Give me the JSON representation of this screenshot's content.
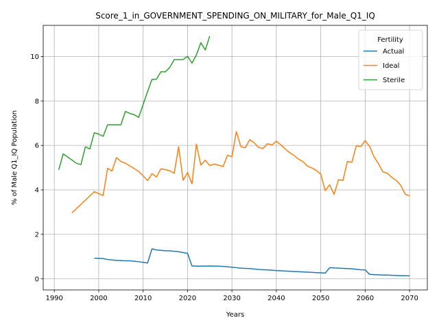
{
  "chart_data": {
    "type": "line",
    "title": "Score_1_in_GOVERNMENT_SPENDING_ON_MILITARY_for_Male_Q1_IQ",
    "xlabel": "Years",
    "ylabel": "% of Male Q1_IQ Population",
    "xlim": [
      1987.5,
      2074
    ],
    "ylim": [
      -0.5,
      11.4
    ],
    "xticks": [
      1990,
      2000,
      2010,
      2020,
      2030,
      2040,
      2050,
      2060,
      2070
    ],
    "yticks": [
      0,
      2,
      4,
      6,
      8,
      10
    ],
    "grid": true,
    "legend": {
      "title": "Fertility",
      "position": "top-right"
    },
    "series": [
      {
        "name": "Actual",
        "color": "#1f77b4",
        "x": [
          1999,
          2000,
          2001,
          2002,
          2003,
          2004,
          2005,
          2006,
          2007,
          2008,
          2009,
          2010,
          2011,
          2012,
          2013,
          2014,
          2015,
          2016,
          2017,
          2018,
          2019,
          2020,
          2021,
          2022,
          2023,
          2024,
          2025,
          2026,
          2027,
          2028,
          2029,
          2030,
          2031,
          2032,
          2033,
          2034,
          2035,
          2036,
          2037,
          2038,
          2039,
          2040,
          2041,
          2042,
          2043,
          2044,
          2045,
          2046,
          2047,
          2048,
          2049,
          2050,
          2051,
          2052,
          2053,
          2054,
          2055,
          2056,
          2057,
          2058,
          2059,
          2060,
          2061,
          2062,
          2063,
          2064,
          2065,
          2066,
          2067,
          2068,
          2069,
          2070
        ],
        "values": [
          0.93,
          0.92,
          0.91,
          0.87,
          0.85,
          0.83,
          0.82,
          0.81,
          0.81,
          0.79,
          0.77,
          0.74,
          0.71,
          1.35,
          1.3,
          1.28,
          1.26,
          1.26,
          1.24,
          1.22,
          1.18,
          1.15,
          0.58,
          0.57,
          0.57,
          0.57,
          0.58,
          0.57,
          0.57,
          0.56,
          0.54,
          0.52,
          0.5,
          0.48,
          0.47,
          0.46,
          0.44,
          0.42,
          0.41,
          0.4,
          0.39,
          0.37,
          0.36,
          0.35,
          0.34,
          0.33,
          0.32,
          0.31,
          0.3,
          0.29,
          0.28,
          0.27,
          0.26,
          0.5,
          0.49,
          0.48,
          0.47,
          0.46,
          0.45,
          0.43,
          0.41,
          0.4,
          0.2,
          0.19,
          0.18,
          0.17,
          0.17,
          0.16,
          0.15,
          0.14,
          0.14,
          0.13
        ]
      },
      {
        "name": "Ideal",
        "color": "#ff7f0e",
        "x": [
          1994,
          1999,
          2001,
          2002,
          2003,
          2004,
          2005,
          2006,
          2007,
          2008,
          2009,
          2010,
          2011,
          2012,
          2013,
          2014,
          2015,
          2016,
          2017,
          2018,
          2019,
          2020,
          2021,
          2022,
          2023,
          2024,
          2025,
          2026,
          2027,
          2028,
          2029,
          2030,
          2031,
          2032,
          2033,
          2034,
          2035,
          2036,
          2037,
          2038,
          2039,
          2040,
          2041,
          2042,
          2043,
          2044,
          2045,
          2046,
          2047,
          2048,
          2049,
          2050,
          2051,
          2052,
          2053,
          2054,
          2055,
          2056,
          2057,
          2058,
          2059,
          2060,
          2061,
          2062,
          2063,
          2064,
          2065,
          2066,
          2067,
          2068,
          2069,
          2070
        ],
        "values": [
          2.97,
          3.92,
          3.75,
          4.97,
          4.85,
          5.45,
          5.28,
          5.2,
          5.08,
          4.96,
          4.83,
          4.63,
          4.42,
          4.73,
          4.58,
          4.95,
          4.91,
          4.86,
          4.75,
          5.94,
          4.43,
          4.78,
          4.27,
          6.06,
          5.11,
          5.34,
          5.09,
          5.16,
          5.11,
          5.05,
          5.56,
          5.49,
          6.62,
          5.95,
          5.89,
          6.26,
          6.12,
          5.91,
          5.86,
          6.08,
          6.02,
          6.19,
          6.03,
          5.84,
          5.67,
          5.55,
          5.38,
          5.27,
          5.07,
          4.99,
          4.87,
          4.71,
          3.97,
          4.23,
          3.8,
          4.46,
          4.42,
          5.28,
          5.24,
          5.98,
          5.95,
          6.21,
          5.96,
          5.49,
          5.17,
          4.81,
          4.75,
          4.56,
          4.43,
          4.21,
          3.81,
          3.73
        ]
      },
      {
        "name": "Sterile",
        "color": "#2ca02c",
        "x": [
          1991,
          1992,
          1993,
          1994,
          1995,
          1996,
          1997,
          1998,
          1999,
          2000,
          2001,
          2002,
          2003,
          2004,
          2005,
          2006,
          2007,
          2008,
          2009,
          2010,
          2011,
          2012,
          2013,
          2014,
          2015,
          2016,
          2017,
          2018,
          2019,
          2020,
          2021,
          2022,
          2023,
          2024,
          2025
        ],
        "values": [
          4.9,
          5.62,
          5.48,
          5.34,
          5.19,
          5.14,
          5.94,
          5.84,
          6.57,
          6.51,
          6.41,
          6.93,
          6.93,
          6.93,
          6.93,
          7.53,
          7.44,
          7.38,
          7.26,
          7.84,
          8.43,
          8.97,
          8.98,
          9.31,
          9.31,
          9.51,
          9.86,
          9.86,
          9.86,
          10.01,
          9.7,
          10.07,
          10.62,
          10.29,
          10.92
        ]
      }
    ]
  }
}
